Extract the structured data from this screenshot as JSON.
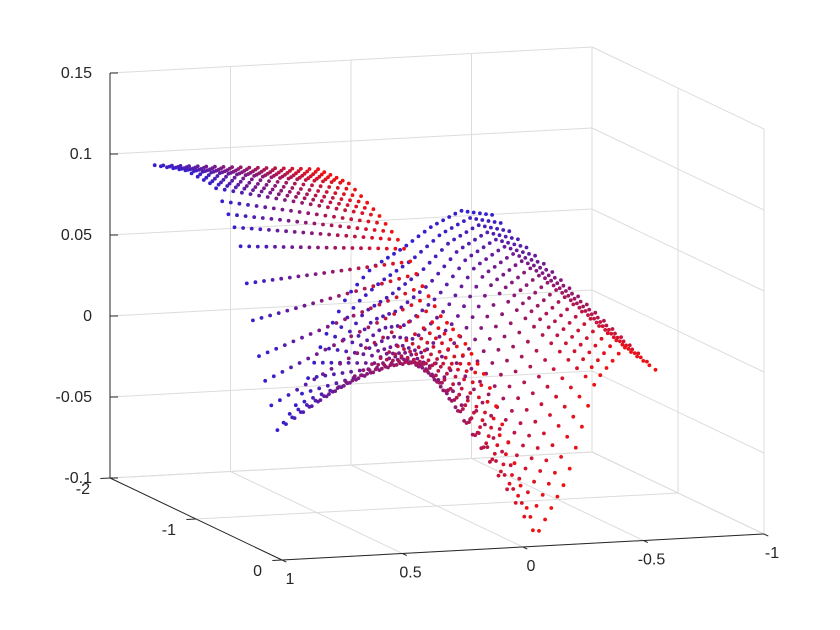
{
  "chart_data": {
    "type": "scatter",
    "title": "",
    "xlabel": "",
    "ylabel": "",
    "zlabel": "",
    "projection": "3d",
    "grid": true,
    "legend": "none",
    "xlim": [
      -1,
      1
    ],
    "ylim": [
      -2,
      0
    ],
    "zlim": [
      -0.1,
      0.15
    ],
    "x_ticks": [
      {
        "value": -1,
        "label": "-1"
      },
      {
        "value": -0.5,
        "label": "-0.5"
      },
      {
        "value": 0,
        "label": "0"
      },
      {
        "value": 0.5,
        "label": "0.5"
      },
      {
        "value": 1,
        "label": "1"
      }
    ],
    "y_ticks": [
      {
        "value": -2,
        "label": "-2"
      },
      {
        "value": -1,
        "label": "-1"
      },
      {
        "value": 0,
        "label": "0"
      }
    ],
    "z_ticks": [
      {
        "value": -0.1,
        "label": "-0.1"
      },
      {
        "value": -0.05,
        "label": "-0.05"
      },
      {
        "value": 0,
        "label": "0"
      },
      {
        "value": 0.05,
        "label": "0.05"
      },
      {
        "value": 0.1,
        "label": "0.1"
      },
      {
        "value": 0.15,
        "label": "0.15"
      }
    ],
    "colormap": {
      "y_at_blue": -2,
      "y_at_red": 0,
      "blue": "#2a1fd9",
      "red": "#ee1111"
    },
    "scan_lines_y": [
      -1.9,
      -1.8,
      -1.7,
      -1.6,
      -1.5,
      -1.4,
      -1.3,
      -1.2,
      -1.1,
      -1.0,
      -0.9,
      -0.8,
      -0.7,
      -0.6,
      -0.5,
      -0.4,
      -0.3,
      -0.2,
      -0.1,
      0.0
    ],
    "scan_points_per_line": 56,
    "profile_x": [
      0.85,
      0.72,
      0.6,
      0.5,
      0.42,
      0.34,
      0.25,
      0.15,
      0.05,
      -0.05,
      -0.18,
      -0.3,
      -0.42,
      -0.55
    ],
    "profile_z_at_y_-2": [
      0.092,
      0.088,
      0.078,
      0.045,
      -0.03,
      -0.08,
      -0.06,
      -0.02,
      0.01,
      0.03,
      0.04,
      0.05,
      0.058,
      0.055
    ],
    "profile_z_at_y_0": [
      0.14,
      0.13,
      0.11,
      0.09,
      0.065,
      0.045,
      0.03,
      0.005,
      -0.04,
      -0.095,
      -0.06,
      0.0,
      0.02,
      0.005
    ]
  }
}
